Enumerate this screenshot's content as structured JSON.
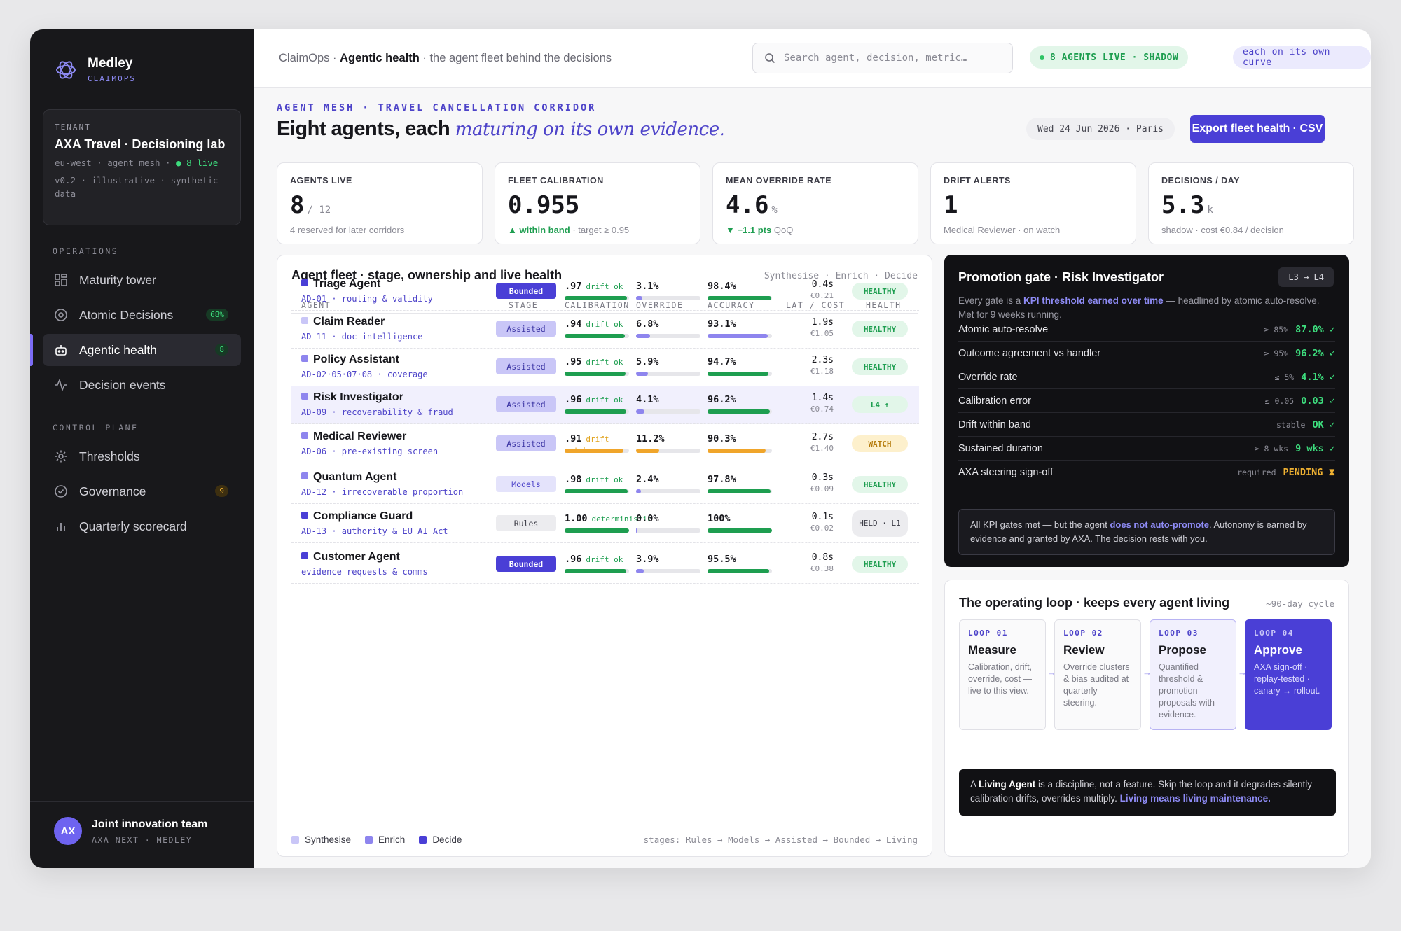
{
  "brand": {
    "name": "Medley",
    "sub": "CLAIMOPS"
  },
  "tenant": {
    "label": "TENANT",
    "name": "AXA Travel · Decisioning lab",
    "meta1": "eu-west · agent mesh · ",
    "live": "● 8 live",
    "meta2": "v0.2 · illustrative · synthetic data"
  },
  "sidebar": {
    "operations_label": "OPERATIONS",
    "control_label": "CONTROL PLANE",
    "items": [
      {
        "label": "Maturity tower"
      },
      {
        "label": "Atomic Decisions",
        "badge": "68%"
      },
      {
        "label": "Agentic health",
        "badge": "8"
      },
      {
        "label": "Decision events"
      },
      {
        "label": "Thresholds"
      },
      {
        "label": "Governance",
        "badge": "9"
      },
      {
        "label": "Quarterly scorecard"
      }
    ],
    "user": {
      "initials": "AX",
      "name": "Joint innovation team",
      "org": "AXA NEXT · MEDLEY"
    }
  },
  "header": {
    "crumb_app": "ClaimOps · ",
    "crumb_page": "Agentic health",
    "crumb_rest": " · the agent fleet behind the decisions",
    "search_placeholder": "Search agent, decision, metric…",
    "live_pill": "8 AGENTS LIVE · SHADOW",
    "curve_pill": "each on its own curve"
  },
  "page": {
    "eyebrow": "AGENT MESH · TRAVEL CANCELLATION CORRIDOR",
    "title": "Eight agents, each ",
    "title_em": "maturing on its own evidence.",
    "date": "Wed 24 Jun 2026 · Paris",
    "export": "Export fleet health · CSV"
  },
  "kpis": [
    {
      "label": "AGENTS LIVE",
      "value": "8",
      "unit": "/ 12",
      "sub_hl": "",
      "sub": "4 reserved for later corridors"
    },
    {
      "label": "FLEET CALIBRATION",
      "value": "0.955",
      "unit": "",
      "sub_hl": "▲ within band",
      "sub": " · target ≥ 0.95"
    },
    {
      "label": "MEAN OVERRIDE RATE",
      "value": "4.6",
      "unit": "%",
      "sub_hl": "▼ −1.1 pts",
      "sub": " QoQ"
    },
    {
      "label": "DRIFT ALERTS",
      "value": "1",
      "unit": "",
      "sub_hl": "",
      "sub": "Medical Reviewer · on watch"
    },
    {
      "label": "DECISIONS / DAY",
      "value": "5.3",
      "unit": "k",
      "sub_hl": "",
      "sub": "shadow · cost €0.84 / decision"
    }
  ],
  "fleet": {
    "title": "Agent fleet · stage, ownership and live health",
    "sub": "Synthesise · Enrich · Decide",
    "columns": [
      "AGENT",
      "STAGE",
      "CALIBRATION",
      "OVERRIDE",
      "ACCURACY",
      "LAT / COST",
      "HEALTH"
    ],
    "rows": [
      {
        "name": "Triage Agent",
        "code": "AD-01 · routing & validity",
        "stage": "Bounded",
        "cal": ".97",
        "drift": "drift ok",
        "cal_frac": 0.97,
        "override": "3.1%",
        "ov_frac": 0.1,
        "accuracy": "98.4%",
        "ac_frac": 0.984,
        "lat": "0.4s",
        "cost": "€0.21",
        "health": "HEALTHY",
        "role": "decide"
      },
      {
        "name": "Claim Reader",
        "code": "AD-11 · doc intelligence",
        "stage": "Assisted",
        "cal": ".94",
        "drift": "drift ok",
        "cal_frac": 0.94,
        "override": "6.8%",
        "ov_frac": 0.22,
        "accuracy": "93.1%",
        "ac_frac": 0.931,
        "lat": "1.9s",
        "cost": "€1.05",
        "health": "HEALTHY",
        "role": "synth"
      },
      {
        "name": "Policy Assistant",
        "code": "AD-02·05·07·08 · coverage",
        "stage": "Assisted",
        "cal": ".95",
        "drift": "drift ok",
        "cal_frac": 0.95,
        "override": "5.9%",
        "ov_frac": 0.19,
        "accuracy": "94.7%",
        "ac_frac": 0.947,
        "lat": "2.3s",
        "cost": "€1.18",
        "health": "HEALTHY",
        "role": "enrich"
      },
      {
        "name": "Risk Investigator",
        "code": "AD-09 · recoverability & fraud",
        "stage": "Assisted",
        "cal": ".96",
        "drift": "drift ok",
        "cal_frac": 0.96,
        "override": "4.1%",
        "ov_frac": 0.13,
        "accuracy": "96.2%",
        "ac_frac": 0.962,
        "lat": "1.4s",
        "cost": "€0.74",
        "health": "L4 ↑",
        "role": "enrich"
      },
      {
        "name": "Medical Reviewer",
        "code": "AD-06 · pre-existing screen",
        "stage": "Assisted",
        "cal": ".91",
        "drift": "drift watch",
        "cal_frac": 0.91,
        "override": "11.2%",
        "ov_frac": 0.36,
        "accuracy": "90.3%",
        "ac_frac": 0.903,
        "lat": "2.7s",
        "cost": "€1.40",
        "health": "WATCH",
        "role": "enrich"
      },
      {
        "name": "Quantum Agent",
        "code": "AD-12 · irrecoverable proportion",
        "stage": "Models",
        "cal": ".98",
        "drift": "drift ok",
        "cal_frac": 0.98,
        "override": "2.4%",
        "ov_frac": 0.08,
        "accuracy": "97.8%",
        "ac_frac": 0.978,
        "lat": "0.3s",
        "cost": "€0.09",
        "health": "HEALTHY",
        "role": "enrich"
      },
      {
        "name": "Compliance Guard",
        "code": "AD-13 · authority & EU AI Act",
        "stage": "Rules",
        "cal": "1.00",
        "drift": "deterministic",
        "cal_frac": 1.0,
        "override": "0.0%",
        "ov_frac": 0.01,
        "accuracy": "100%",
        "ac_frac": 1.0,
        "lat": "0.1s",
        "cost": "€0.02",
        "health": "HELD · L1",
        "role": "decide"
      },
      {
        "name": "Customer Agent",
        "code": "evidence requests & comms",
        "stage": "Bounded",
        "cal": ".96",
        "drift": "drift ok",
        "cal_frac": 0.96,
        "override": "3.9%",
        "ov_frac": 0.12,
        "accuracy": "95.5%",
        "ac_frac": 0.955,
        "lat": "0.8s",
        "cost": "€0.38",
        "health": "HEALTHY",
        "role": "decide"
      }
    ],
    "legend": [
      "Synthesise",
      "Enrich",
      "Decide"
    ],
    "stages_line": "stages: Rules → Models → Assisted → Bounded → Living"
  },
  "gate": {
    "title": "Promotion gate · Risk Investigator",
    "level": "L3 → L4",
    "desc_a": "Every gate is a ",
    "desc_b": "KPI threshold earned over time",
    "desc_c": " — headlined by atomic auto-resolve. Met for 9 weeks running.",
    "rows": [
      {
        "label": "Atomic auto-resolve",
        "threshold": "≥ 85%",
        "value": "87.0% ✓"
      },
      {
        "label": "Outcome agreement vs handler",
        "threshold": "≥ 95%",
        "value": "96.2% ✓"
      },
      {
        "label": "Override rate",
        "threshold": "≤ 5%",
        "value": "4.1% ✓"
      },
      {
        "label": "Calibration error",
        "threshold": "≤ 0.05",
        "value": "0.03 ✓"
      },
      {
        "label": "Drift within band",
        "threshold": "stable",
        "value": "OK ✓"
      },
      {
        "label": "Sustained duration",
        "threshold": "≥ 8 wks",
        "value": "9 wks ✓"
      },
      {
        "label": "AXA steering sign-off",
        "threshold": "required",
        "value": "PENDING ⧗"
      }
    ],
    "note_a": "All KPI gates met — but the agent ",
    "note_b": "does not auto-promote",
    "note_c": ". Autonomy is earned by evidence and granted by AXA. The decision rests with you."
  },
  "loop": {
    "title": "The operating loop · keeps every agent living",
    "cycle": "~90-day cycle",
    "steps": [
      {
        "num": "LOOP 01",
        "title": "Measure",
        "desc": "Calibration, drift, override, cost — live to this view."
      },
      {
        "num": "LOOP 02",
        "title": "Review",
        "desc": "Override clusters & bias audited at quarterly steering."
      },
      {
        "num": "LOOP 03",
        "title": "Propose",
        "desc": "Quantified threshold & promotion proposals with evidence."
      },
      {
        "num": "LOOP 04",
        "title": "Approve",
        "desc": "AXA sign-off · replay-tested · canary → rollout."
      }
    ],
    "note_a": "A ",
    "note_b": "Living Agent",
    "note_c": " is a discipline, not a feature. Skip the loop and it degrades silently — calibration drifts, overrides multiply. ",
    "note_d": "Living means living maintenance."
  },
  "colors": {
    "synth": "#c9c6f7",
    "enrich": "#8e85ee",
    "decide": "#4a3fd6",
    "ok": "#1e9e50",
    "watch": "#f0a52a"
  }
}
